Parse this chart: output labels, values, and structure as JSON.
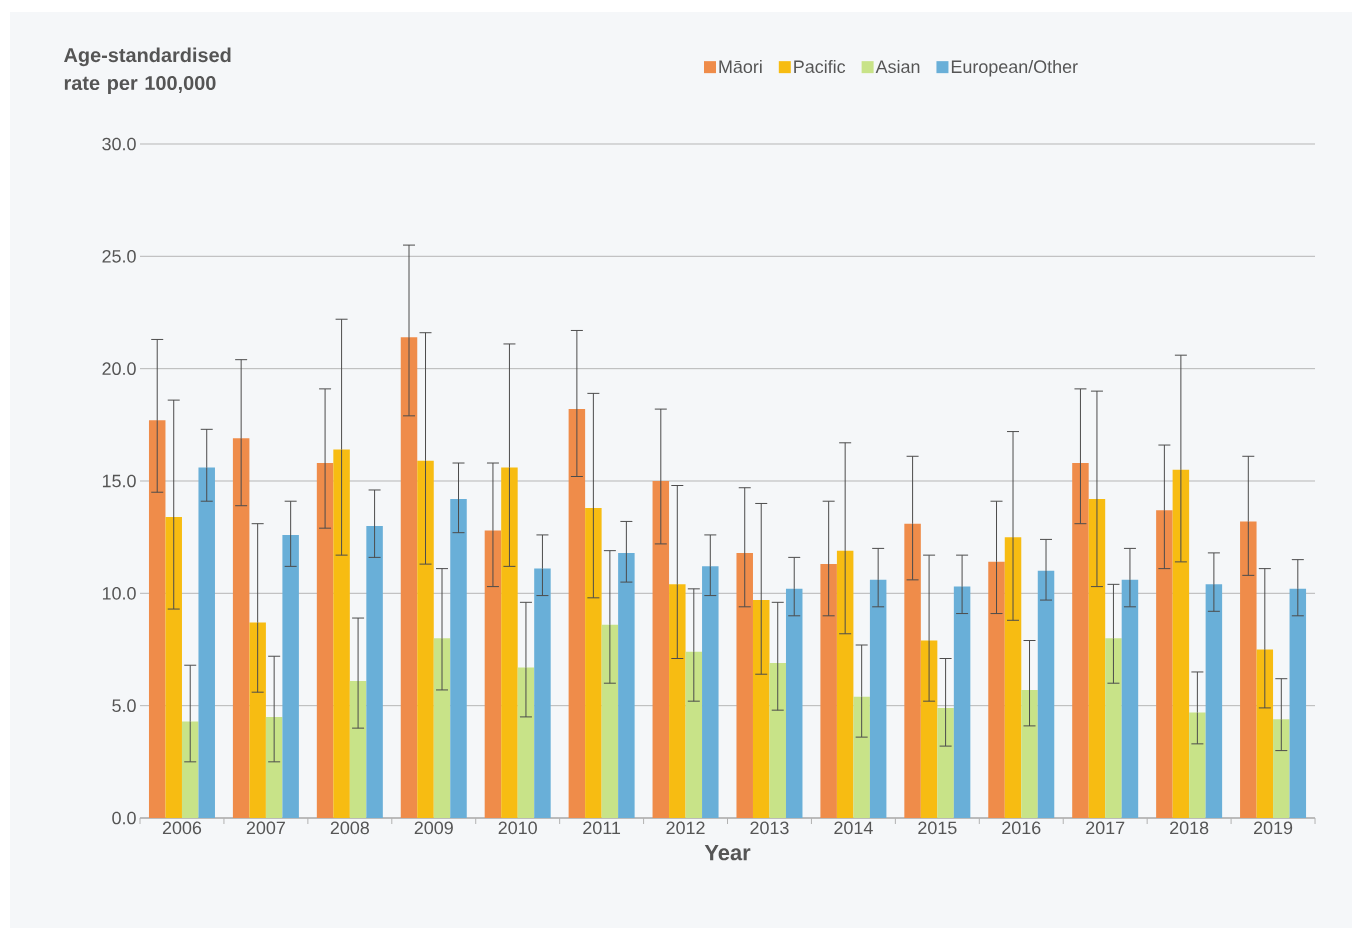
{
  "chart_data": {
    "type": "bar",
    "ylabel": "Age-standardised rate per 100,000",
    "xlabel": "Year",
    "categories": [
      "2006",
      "2007",
      "2008",
      "2009",
      "2010",
      "2011",
      "2012",
      "2013",
      "2014",
      "2015",
      "2016",
      "2017",
      "2018",
      "2019"
    ],
    "series": [
      {
        "name": "Māori",
        "color": "#ef8c4a",
        "values": [
          17.7,
          16.9,
          15.8,
          21.4,
          12.8,
          18.2,
          15.0,
          11.8,
          11.3,
          13.1,
          11.4,
          15.8,
          13.7,
          13.2
        ],
        "errors": [
          [
            14.5,
            21.3
          ],
          [
            13.9,
            20.4
          ],
          [
            12.9,
            19.1
          ],
          [
            17.9,
            25.5
          ],
          [
            10.3,
            15.8
          ],
          [
            15.2,
            21.7
          ],
          [
            12.2,
            18.2
          ],
          [
            9.4,
            14.7
          ],
          [
            9.0,
            14.1
          ],
          [
            10.6,
            16.1
          ],
          [
            9.1,
            14.1
          ],
          [
            13.1,
            19.1
          ],
          [
            11.1,
            16.6
          ],
          [
            10.8,
            16.1
          ]
        ]
      },
      {
        "name": "Pacific",
        "color": "#f7bc12",
        "values": [
          13.4,
          8.7,
          16.4,
          15.9,
          15.6,
          13.8,
          10.4,
          9.7,
          11.9,
          7.9,
          12.5,
          14.2,
          15.5,
          7.5
        ],
        "errors": [
          [
            9.3,
            18.6
          ],
          [
            5.6,
            13.1
          ],
          [
            11.7,
            22.2
          ],
          [
            11.3,
            21.6
          ],
          [
            11.2,
            21.1
          ],
          [
            9.8,
            18.9
          ],
          [
            7.1,
            14.8
          ],
          [
            6.4,
            14.0
          ],
          [
            8.2,
            16.7
          ],
          [
            5.2,
            11.7
          ],
          [
            8.8,
            17.2
          ],
          [
            10.3,
            19.0
          ],
          [
            11.4,
            20.6
          ],
          [
            4.9,
            11.1
          ]
        ]
      },
      {
        "name": "Asian",
        "color": "#c8e388",
        "values": [
          4.3,
          4.5,
          6.1,
          8.0,
          6.7,
          8.6,
          7.4,
          6.9,
          5.4,
          4.9,
          5.7,
          8.0,
          4.7,
          4.4
        ],
        "errors": [
          [
            2.5,
            6.8
          ],
          [
            2.5,
            7.2
          ],
          [
            4.0,
            8.9
          ],
          [
            5.7,
            11.1
          ],
          [
            4.5,
            9.6
          ],
          [
            6.0,
            11.9
          ],
          [
            5.2,
            10.2
          ],
          [
            4.8,
            9.6
          ],
          [
            3.6,
            7.7
          ],
          [
            3.2,
            7.1
          ],
          [
            4.1,
            7.9
          ],
          [
            6.0,
            10.4
          ],
          [
            3.3,
            6.5
          ],
          [
            3.0,
            6.2
          ]
        ]
      },
      {
        "name": "European/Other",
        "color": "#69afd8",
        "values": [
          15.6,
          12.6,
          13.0,
          14.2,
          11.1,
          11.8,
          11.2,
          10.2,
          10.6,
          10.3,
          11.0,
          10.6,
          10.4,
          10.2
        ],
        "errors": [
          [
            14.1,
            17.3
          ],
          [
            11.2,
            14.1
          ],
          [
            11.6,
            14.6
          ],
          [
            12.7,
            15.8
          ],
          [
            9.9,
            12.6
          ],
          [
            10.5,
            13.2
          ],
          [
            9.9,
            12.6
          ],
          [
            9.0,
            11.6
          ],
          [
            9.4,
            12.0
          ],
          [
            9.1,
            11.7
          ],
          [
            9.7,
            12.4
          ],
          [
            9.4,
            12.0
          ],
          [
            9.2,
            11.8
          ],
          [
            9.0,
            11.5
          ]
        ]
      }
    ],
    "ylim": [
      0,
      30
    ],
    "yticks": [
      {
        "value": 0,
        "label": "0.0"
      },
      {
        "value": 5,
        "label": "5.0"
      },
      {
        "value": 10,
        "label": "10.0"
      },
      {
        "value": 15,
        "label": "15.0"
      },
      {
        "value": 20,
        "label": "20.0"
      },
      {
        "value": 25,
        "label": "25.0"
      },
      {
        "value": 30,
        "label": "30.0"
      }
    ],
    "grid": "y",
    "legend": "top"
  }
}
